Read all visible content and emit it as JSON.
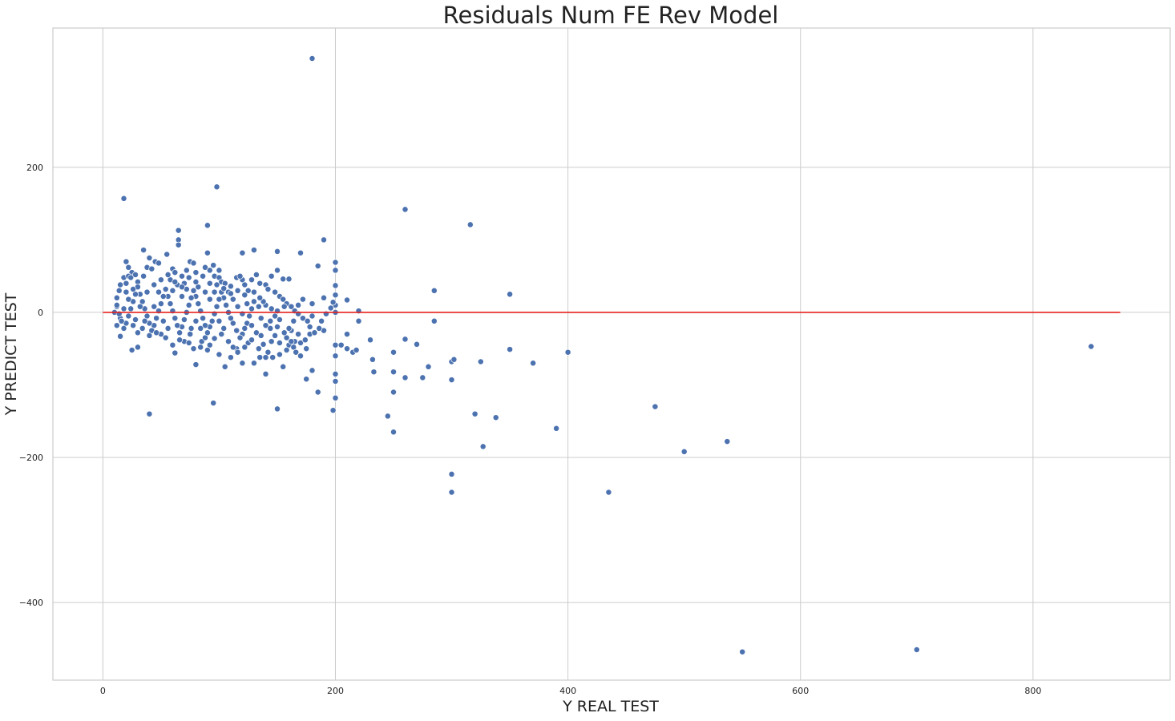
{
  "chart_data": {
    "type": "scatter",
    "title": "Residuals Num FE Rev Model",
    "xlabel": "Y REAL TEST",
    "ylabel": "Y PREDICT TEST",
    "xlim": [
      -43,
      918
    ],
    "ylim": [
      -507,
      392
    ],
    "xticks": [
      0,
      200,
      400,
      600,
      800
    ],
    "yticks": [
      -400,
      -200,
      0,
      200
    ],
    "grid": true,
    "colors": {
      "points": "#4c72b0",
      "zero_line": "#e8231e"
    },
    "reference_line": {
      "y": 0,
      "x_start": 0,
      "x_end": 875
    },
    "points": [
      [
        180,
        350
      ],
      [
        98,
        173
      ],
      [
        18,
        157
      ],
      [
        260,
        142
      ],
      [
        316,
        121
      ],
      [
        90,
        120
      ],
      [
        65,
        113
      ],
      [
        190,
        100
      ],
      [
        65,
        100
      ],
      [
        65,
        93
      ],
      [
        130,
        86
      ],
      [
        35,
        86
      ],
      [
        150,
        84
      ],
      [
        170,
        82
      ],
      [
        90,
        82
      ],
      [
        120,
        82
      ],
      [
        20,
        70
      ],
      [
        45,
        70
      ],
      [
        200,
        69
      ],
      [
        75,
        70
      ],
      [
        185,
        64
      ],
      [
        200,
        58
      ],
      [
        150,
        58
      ],
      [
        60,
        60
      ],
      [
        100,
        58
      ],
      [
        95,
        65
      ],
      [
        25,
        55
      ],
      [
        155,
        46
      ],
      [
        160,
        46
      ],
      [
        120,
        45
      ],
      [
        200,
        37
      ],
      [
        285,
        30
      ],
      [
        350,
        25
      ],
      [
        190,
        20
      ],
      [
        210,
        17
      ],
      [
        220,
        2
      ],
      [
        200,
        10
      ],
      [
        180,
        12
      ],
      [
        200,
        0
      ],
      [
        180,
        -5
      ],
      [
        190,
        -25
      ],
      [
        150,
        -20
      ],
      [
        145,
        -40
      ],
      [
        160,
        -45
      ],
      [
        165,
        -40
      ],
      [
        170,
        -60
      ],
      [
        175,
        -50
      ],
      [
        155,
        -75
      ],
      [
        140,
        -85
      ],
      [
        200,
        -45
      ],
      [
        200,
        -60
      ],
      [
        205,
        -45
      ],
      [
        210,
        -50
      ],
      [
        215,
        -55
      ],
      [
        218,
        -52
      ],
      [
        210,
        -30
      ],
      [
        220,
        -12
      ],
      [
        230,
        -38
      ],
      [
        232,
        -65
      ],
      [
        233,
        -82
      ],
      [
        250,
        -55
      ],
      [
        250,
        -82
      ],
      [
        250,
        -110
      ],
      [
        245,
        -143
      ],
      [
        250,
        -165
      ],
      [
        260,
        -37
      ],
      [
        260,
        -90
      ],
      [
        270,
        -44
      ],
      [
        275,
        -90
      ],
      [
        280,
        -75
      ],
      [
        285,
        -12
      ],
      [
        300,
        -68
      ],
      [
        302,
        -65
      ],
      [
        300,
        -93
      ],
      [
        300,
        -223
      ],
      [
        300,
        -248
      ],
      [
        320,
        -140
      ],
      [
        325,
        -68
      ],
      [
        327,
        -185
      ],
      [
        338,
        -145
      ],
      [
        350,
        -51
      ],
      [
        370,
        -70
      ],
      [
        390,
        -160
      ],
      [
        400,
        -55
      ],
      [
        435,
        -248
      ],
      [
        475,
        -130
      ],
      [
        500,
        -192
      ],
      [
        537,
        -178
      ],
      [
        550,
        -468
      ],
      [
        700,
        -465
      ],
      [
        850,
        -47
      ],
      [
        200,
        -85
      ],
      [
        200,
        -95
      ],
      [
        200,
        -118
      ],
      [
        198,
        -135
      ],
      [
        185,
        -110
      ],
      [
        180,
        -80
      ],
      [
        175,
        -92
      ],
      [
        150,
        -133
      ],
      [
        95,
        -125
      ],
      [
        40,
        -140
      ],
      [
        80,
        -72
      ],
      [
        105,
        -75
      ],
      [
        130,
        -70
      ],
      [
        135,
        -62
      ],
      [
        140,
        -62
      ],
      [
        125,
        -42
      ],
      [
        115,
        -50
      ],
      [
        110,
        -62
      ],
      [
        120,
        -70
      ],
      [
        100,
        -58
      ],
      [
        92,
        -45
      ],
      [
        85,
        -40
      ],
      [
        88,
        -35
      ],
      [
        75,
        -30
      ],
      [
        70,
        -40
      ],
      [
        62,
        -56
      ],
      [
        50,
        -30
      ],
      [
        30,
        -48
      ],
      [
        25,
        -52
      ],
      [
        15,
        -33
      ],
      [
        12,
        -18
      ],
      [
        15,
        -8
      ],
      [
        10,
        0
      ],
      [
        12,
        8
      ],
      [
        12,
        20
      ],
      [
        14,
        30
      ],
      [
        15,
        38
      ],
      [
        18,
        48
      ],
      [
        20,
        40
      ],
      [
        22,
        50
      ],
      [
        22,
        62
      ],
      [
        24,
        48
      ],
      [
        28,
        52
      ],
      [
        30,
        42
      ],
      [
        35,
        50
      ],
      [
        38,
        62
      ],
      [
        40,
        75
      ],
      [
        42,
        60
      ],
      [
        48,
        68
      ],
      [
        55,
        80
      ],
      [
        58,
        45
      ],
      [
        62,
        55
      ],
      [
        68,
        50
      ],
      [
        70,
        40
      ],
      [
        72,
        58
      ],
      [
        78,
        68
      ],
      [
        80,
        55
      ],
      [
        82,
        35
      ],
      [
        88,
        62
      ],
      [
        92,
        40
      ],
      [
        96,
        50
      ],
      [
        100,
        48
      ],
      [
        102,
        42
      ],
      [
        105,
        40
      ],
      [
        110,
        36
      ],
      [
        115,
        48
      ],
      [
        118,
        50
      ],
      [
        122,
        38
      ],
      [
        125,
        30
      ],
      [
        128,
        45
      ],
      [
        132,
        52
      ],
      [
        135,
        40
      ],
      [
        140,
        38
      ],
      [
        142,
        32
      ],
      [
        145,
        50
      ],
      [
        148,
        28
      ],
      [
        152,
        22
      ],
      [
        155,
        18
      ],
      [
        158,
        12
      ],
      [
        162,
        8
      ],
      [
        165,
        2
      ],
      [
        168,
        -2
      ],
      [
        172,
        -8
      ],
      [
        176,
        -12
      ],
      [
        178,
        -20
      ],
      [
        168,
        -30
      ],
      [
        162,
        -25
      ],
      [
        158,
        -35
      ],
      [
        152,
        -10
      ],
      [
        148,
        -5
      ],
      [
        145,
        5
      ],
      [
        140,
        10
      ],
      [
        138,
        15
      ],
      [
        135,
        20
      ],
      [
        130,
        15
      ],
      [
        128,
        5
      ],
      [
        126,
        -5
      ],
      [
        124,
        -15
      ],
      [
        122,
        -22
      ],
      [
        120,
        -30
      ],
      [
        118,
        -35
      ],
      [
        115,
        -25
      ],
      [
        112,
        -15
      ],
      [
        110,
        -8
      ],
      [
        108,
        0
      ],
      [
        106,
        10
      ],
      [
        104,
        20
      ],
      [
        102,
        28
      ],
      [
        100,
        18
      ],
      [
        98,
        8
      ],
      [
        96,
        -2
      ],
      [
        94,
        -12
      ],
      [
        92,
        -20
      ],
      [
        90,
        -28
      ],
      [
        88,
        -18
      ],
      [
        86,
        -8
      ],
      [
        84,
        2
      ],
      [
        82,
        12
      ],
      [
        80,
        22
      ],
      [
        78,
        30
      ],
      [
        76,
        20
      ],
      [
        74,
        10
      ],
      [
        72,
        0
      ],
      [
        70,
        -10
      ],
      [
        68,
        -20
      ],
      [
        66,
        -28
      ],
      [
        64,
        -18
      ],
      [
        62,
        -8
      ],
      [
        60,
        2
      ],
      [
        58,
        12
      ],
      [
        56,
        22
      ],
      [
        54,
        32
      ],
      [
        52,
        22
      ],
      [
        50,
        12
      ],
      [
        48,
        2
      ],
      [
        46,
        -8
      ],
      [
        44,
        -18
      ],
      [
        42,
        -25
      ],
      [
        40,
        -15
      ],
      [
        38,
        -5
      ],
      [
        36,
        5
      ],
      [
        34,
        15
      ],
      [
        32,
        25
      ],
      [
        30,
        35
      ],
      [
        28,
        25
      ],
      [
        26,
        15
      ],
      [
        24,
        5
      ],
      [
        22,
        -5
      ],
      [
        20,
        -15
      ],
      [
        18,
        -22
      ],
      [
        16,
        -12
      ],
      [
        14,
        -2
      ],
      [
        12,
        10
      ],
      [
        20,
        28
      ],
      [
        26,
        32
      ],
      [
        32,
        8
      ],
      [
        36,
        -12
      ],
      [
        44,
        8
      ],
      [
        48,
        28
      ],
      [
        52,
        -12
      ],
      [
        56,
        -22
      ],
      [
        60,
        30
      ],
      [
        64,
        38
      ],
      [
        68,
        22
      ],
      [
        72,
        32
      ],
      [
        76,
        -22
      ],
      [
        80,
        -12
      ],
      [
        84,
        -22
      ],
      [
        88,
        28
      ],
      [
        92,
        18
      ],
      [
        96,
        28
      ],
      [
        100,
        -12
      ],
      [
        104,
        -22
      ],
      [
        108,
        28
      ],
      [
        112,
        18
      ],
      [
        116,
        8
      ],
      [
        120,
        -2
      ],
      [
        124,
        12
      ],
      [
        128,
        -18
      ],
      [
        132,
        -28
      ],
      [
        136,
        -32
      ],
      [
        140,
        -18
      ],
      [
        144,
        -22
      ],
      [
        148,
        -32
      ],
      [
        152,
        -42
      ],
      [
        156,
        -28
      ],
      [
        160,
        -22
      ],
      [
        164,
        -12
      ],
      [
        168,
        10
      ],
      [
        172,
        18
      ],
      [
        60,
        -45
      ],
      [
        66,
        -38
      ],
      [
        74,
        -42
      ],
      [
        78,
        -50
      ],
      [
        84,
        -48
      ],
      [
        90,
        -52
      ],
      [
        96,
        -36
      ],
      [
        102,
        -30
      ],
      [
        108,
        -40
      ],
      [
        112,
        -48
      ],
      [
        116,
        -55
      ],
      [
        122,
        -48
      ],
      [
        128,
        -38
      ],
      [
        134,
        -50
      ],
      [
        138,
        -44
      ],
      [
        142,
        -55
      ],
      [
        146,
        -62
      ],
      [
        152,
        -58
      ],
      [
        158,
        -52
      ],
      [
        164,
        -48
      ],
      [
        170,
        -42
      ],
      [
        174,
        -38
      ],
      [
        178,
        -30
      ],
      [
        182,
        -28
      ],
      [
        186,
        -22
      ],
      [
        188,
        -12
      ],
      [
        192,
        -2
      ],
      [
        196,
        6
      ],
      [
        198,
        14
      ],
      [
        200,
        24
      ],
      [
        28,
        -10
      ],
      [
        34,
        -22
      ],
      [
        40,
        -32
      ],
      [
        46,
        -28
      ],
      [
        54,
        -35
      ],
      [
        18,
        5
      ],
      [
        22,
        18
      ],
      [
        26,
        -18
      ],
      [
        30,
        -28
      ],
      [
        38,
        28
      ],
      [
        44,
        38
      ],
      [
        50,
        45
      ],
      [
        56,
        52
      ],
      [
        62,
        42
      ],
      [
        68,
        35
      ],
      [
        74,
        48
      ],
      [
        80,
        42
      ],
      [
        86,
        50
      ],
      [
        92,
        58
      ],
      [
        98,
        38
      ],
      [
        104,
        33
      ],
      [
        110,
        26
      ],
      [
        116,
        30
      ],
      [
        122,
        24
      ],
      [
        130,
        28
      ],
      [
        134,
        8
      ],
      [
        136,
        -8
      ],
      [
        144,
        -12
      ],
      [
        150,
        2
      ],
      [
        156,
        8
      ],
      [
        162,
        -40
      ],
      [
        166,
        -55
      ]
    ]
  }
}
